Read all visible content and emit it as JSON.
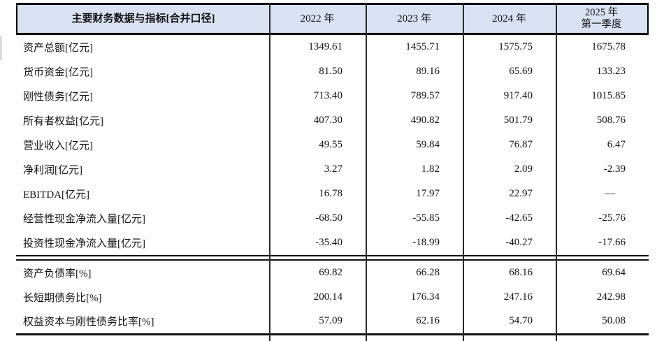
{
  "table": {
    "header": {
      "label": "主要财务数据与指标[合并口径]",
      "col_2022": "2022 年",
      "col_2023": "2023 年",
      "col_2024": "2024 年",
      "col_2025_line1": "2025 年",
      "col_2025_line2": "第一季度"
    },
    "colors": {
      "header_bg": "#d9e2f3",
      "border": "#000000",
      "grid": "#2a2a2a"
    },
    "section1": [
      {
        "label": "资产总额[亿元]",
        "values": [
          "1349.61",
          "1455.71",
          "1575.75",
          "1675.78"
        ]
      },
      {
        "label": "货币资金[亿元]",
        "values": [
          "81.50",
          "89.16",
          "65.69",
          "133.23"
        ]
      },
      {
        "label": "刚性债务[亿元]",
        "values": [
          "713.40",
          "789.57",
          "917.40",
          "1015.85"
        ]
      },
      {
        "label": "所有者权益[亿元]",
        "values": [
          "407.30",
          "490.82",
          "501.79",
          "508.76"
        ]
      },
      {
        "label": "营业收入[亿元]",
        "values": [
          "49.55",
          "59.84",
          "76.87",
          "6.47"
        ]
      },
      {
        "label": "净利润[亿元]",
        "values": [
          "3.27",
          "1.82",
          "2.09",
          "-2.39"
        ]
      },
      {
        "label": "EBITDA[亿元]",
        "values": [
          "16.78",
          "17.97",
          "22.97",
          "—"
        ]
      },
      {
        "label": "经营性现金净流入量[亿元]",
        "values": [
          "-68.50",
          "-55.85",
          "-42.65",
          "-25.76"
        ]
      },
      {
        "label": "投资性现金净流入量[亿元]",
        "values": [
          "-35.40",
          "-18.99",
          "-40.27",
          "-17.66"
        ]
      }
    ],
    "section2": [
      {
        "label": "资产负债率[%]",
        "values": [
          "69.82",
          "66.28",
          "68.16",
          "69.64"
        ]
      },
      {
        "label": "长短期债务比[%]",
        "values": [
          "200.14",
          "176.34",
          "247.16",
          "242.98"
        ]
      },
      {
        "label": "权益资本与刚性债务比率[%]",
        "values": [
          "57.09",
          "62.16",
          "54.70",
          "50.08"
        ]
      }
    ]
  }
}
